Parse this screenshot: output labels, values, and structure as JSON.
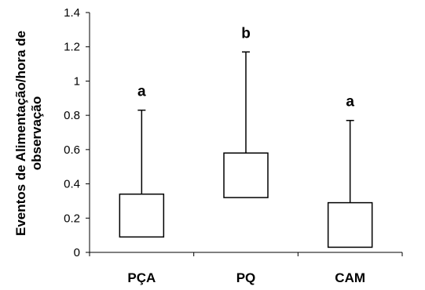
{
  "chart_data": {
    "type": "box",
    "ylabel_lines": [
      "Eventos de Alimentação/hora de",
      "observação"
    ],
    "ylim": [
      0,
      1.4
    ],
    "yticks": [
      "0",
      "0.2",
      "0.4",
      "0.6",
      "0.8",
      "1",
      "1.2",
      "1.4"
    ],
    "ytick_values": [
      0,
      0.2,
      0.4,
      0.6,
      0.8,
      1.0,
      1.2,
      1.4
    ],
    "categories": [
      "PÇA",
      "PQ",
      "CAM"
    ],
    "boxes": [
      {
        "category": "PÇA",
        "box_low": 0.09,
        "box_high": 0.34,
        "whisker_high": 0.83,
        "annotation": "a"
      },
      {
        "category": "PQ",
        "box_low": 0.32,
        "box_high": 0.58,
        "whisker_high": 1.17,
        "annotation": "b"
      },
      {
        "category": "CAM",
        "box_low": 0.03,
        "box_high": 0.29,
        "whisker_high": 0.77,
        "annotation": "a"
      }
    ],
    "grid": false,
    "legend": "none"
  }
}
